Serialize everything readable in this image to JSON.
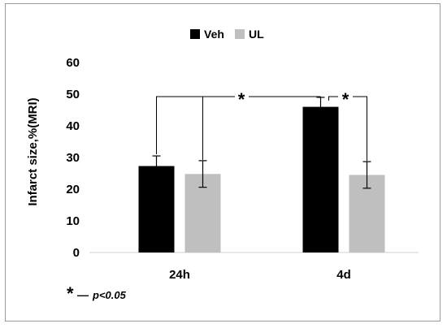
{
  "chart_data": {
    "type": "bar",
    "categories": [
      "24h",
      "4d"
    ],
    "series": [
      {
        "name": "Veh",
        "values": [
          27.3,
          46.0
        ],
        "errors": [
          3.2,
          3.0
        ],
        "color": "#000000"
      },
      {
        "name": "UL",
        "values": [
          24.8,
          24.5
        ],
        "errors": [
          4.2,
          4.2
        ],
        "color": "#bfbfbf"
      }
    ],
    "xlabel": "",
    "ylabel": "Infarct size,%(MRI)",
    "ylim": [
      0,
      60
    ],
    "yticks": [
      0,
      10,
      20,
      30,
      40,
      50,
      60
    ],
    "grid": false,
    "legend_position": "top-center",
    "annotations": {
      "sig_symbol": "*",
      "footnote_symbol": "*",
      "footnote_dash": "—",
      "footnote_text": "p<0.05"
    }
  }
}
